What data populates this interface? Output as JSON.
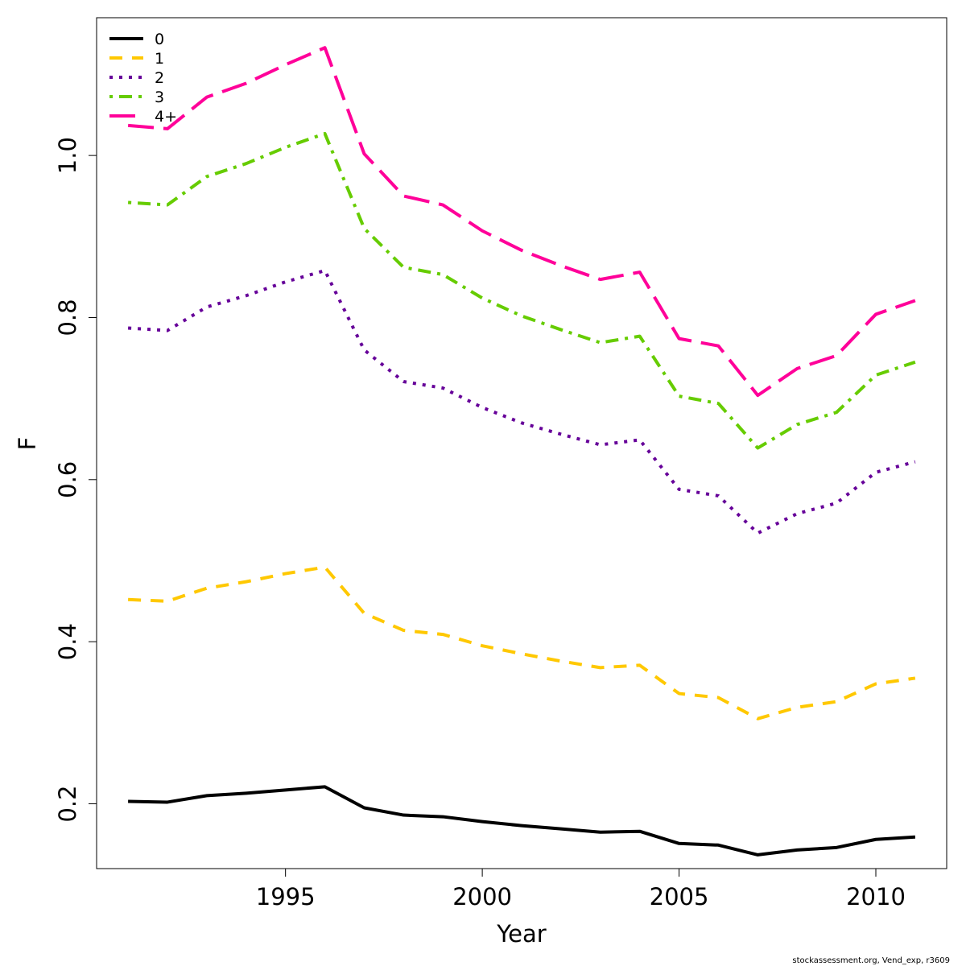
{
  "chart_data": {
    "type": "line",
    "xlabel": "Year",
    "ylabel": "F",
    "xlim": [
      1990.2,
      2011.8
    ],
    "ylim": [
      0.12,
      1.17
    ],
    "x_ticks": [
      1995,
      2000,
      2005,
      2010
    ],
    "y_ticks": [
      0.2,
      0.4,
      0.6,
      0.8,
      1.0
    ],
    "y_tick_labels": [
      "0.2",
      "0.4",
      "0.6",
      "0.8",
      "1.0"
    ],
    "x": [
      1991,
      1992,
      1993,
      1994,
      1995,
      1996,
      1997,
      1998,
      1999,
      2000,
      2001,
      2002,
      2003,
      2004,
      2005,
      2006,
      2007,
      2008,
      2009,
      2010,
      2011
    ],
    "legend_position": "top-left",
    "grid": false,
    "series": [
      {
        "name": "0",
        "color": "#000000",
        "dash": "solid",
        "values": [
          0.203,
          0.202,
          0.21,
          0.213,
          0.217,
          0.221,
          0.195,
          0.186,
          0.184,
          0.178,
          0.173,
          0.169,
          0.165,
          0.166,
          0.151,
          0.149,
          0.137,
          0.143,
          0.146,
          0.156,
          0.159
        ]
      },
      {
        "name": "1",
        "color": "#FFC800",
        "dash": "dashed",
        "values": [
          0.452,
          0.45,
          0.466,
          0.474,
          0.484,
          0.492,
          0.435,
          0.414,
          0.409,
          0.395,
          0.385,
          0.376,
          0.368,
          0.371,
          0.336,
          0.331,
          0.305,
          0.319,
          0.326,
          0.348,
          0.355
        ]
      },
      {
        "name": "2",
        "color": "#660099",
        "dash": "dotted",
        "values": [
          0.787,
          0.784,
          0.813,
          0.827,
          0.844,
          0.858,
          0.76,
          0.721,
          0.713,
          0.689,
          0.67,
          0.656,
          0.643,
          0.649,
          0.588,
          0.58,
          0.534,
          0.558,
          0.571,
          0.609,
          0.622
        ]
      },
      {
        "name": "3",
        "color": "#66CC00",
        "dash": "dotdash",
        "values": [
          0.942,
          0.939,
          0.974,
          0.99,
          1.01,
          1.027,
          0.91,
          0.862,
          0.853,
          0.824,
          0.802,
          0.785,
          0.769,
          0.777,
          0.703,
          0.694,
          0.639,
          0.668,
          0.683,
          0.729,
          0.745
        ]
      },
      {
        "name": "4+",
        "color": "#FF0099",
        "dash": "longdash",
        "values": [
          1.037,
          1.033,
          1.072,
          1.089,
          1.112,
          1.133,
          1.002,
          0.95,
          0.939,
          0.907,
          0.883,
          0.864,
          0.847,
          0.856,
          0.774,
          0.765,
          0.704,
          0.737,
          0.753,
          0.804,
          0.821
        ]
      }
    ]
  },
  "footer": "stockassessment.org, Vend_exp, r3609"
}
